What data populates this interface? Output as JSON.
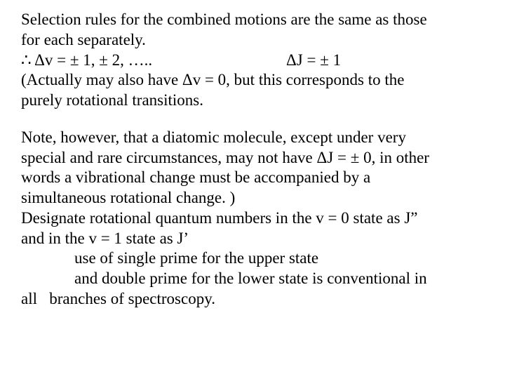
{
  "para1": {
    "l1": "Selection rules for the combined motions are the same as those",
    "l2": "for each separately.",
    "dv": "∴ Δv = ± 1, ± 2, …..",
    "dj": "ΔJ = ± 1",
    "l4": "(Actually may also have Δv = 0, but this corresponds to the",
    "l5": "purely rotational transitions."
  },
  "para2": {
    "l1": "Note, however, that a diatomic molecule, except under very",
    "l2": "special and rare circumstances, may not have ΔJ = ± 0, in other",
    "l3": "words a vibrational change must be accompanied by a",
    "l4": "simultaneous rotational change. )",
    "l5": "Designate rotational quantum numbers in the v = 0 state as J”",
    "l6": "and in the v = 1 state as J’",
    "l7": "use of single prime for the upper state",
    "l8a": "and double prime for the lower state is conventional in",
    "l9a": "all",
    "l9b": "branches of spectroscopy."
  }
}
